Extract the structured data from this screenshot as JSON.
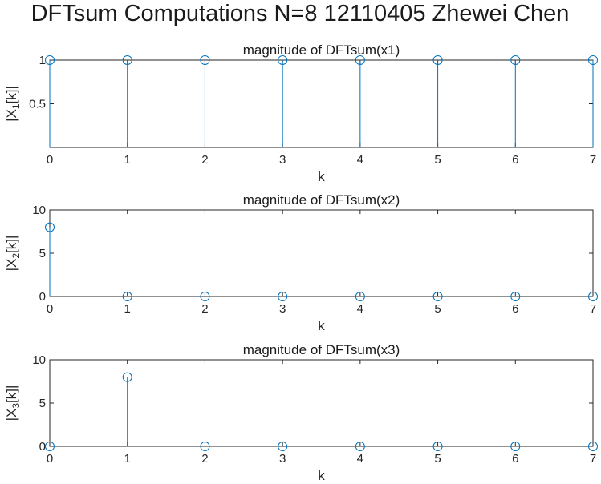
{
  "figure": {
    "suptitle": "DFTsum Computations N=8 12110405 Zhewei Chen"
  },
  "colors": {
    "series": "#0072BD",
    "axes": "#262626"
  },
  "chart_data": [
    {
      "type": "stem",
      "title": "magnitude of DFTsum(x1)",
      "xlabel": "k",
      "ylabel_main": "|X",
      "ylabel_sub": "1",
      "ylabel_tail": "[k]|",
      "xlim": [
        0,
        7
      ],
      "ylim": [
        0,
        1
      ],
      "xticks": [
        0,
        1,
        2,
        3,
        4,
        5,
        6,
        7
      ],
      "yticks": [
        0.5,
        1
      ],
      "ytick_labels": [
        "0.5",
        "1"
      ],
      "x": [
        0,
        1,
        2,
        3,
        4,
        5,
        6,
        7
      ],
      "y": [
        1,
        1,
        1,
        1,
        1,
        1,
        1,
        1
      ]
    },
    {
      "type": "stem",
      "title": "magnitude of DFTsum(x2)",
      "xlabel": "k",
      "ylabel_main": "|X",
      "ylabel_sub": "2",
      "ylabel_tail": "[k]|",
      "xlim": [
        0,
        7
      ],
      "ylim": [
        0,
        10
      ],
      "xticks": [
        0,
        1,
        2,
        3,
        4,
        5,
        6,
        7
      ],
      "yticks": [
        0,
        5,
        10
      ],
      "ytick_labels": [
        "0",
        "5",
        "10"
      ],
      "x": [
        0,
        1,
        2,
        3,
        4,
        5,
        6,
        7
      ],
      "y": [
        8,
        0,
        0,
        0,
        0,
        0,
        0,
        0
      ]
    },
    {
      "type": "stem",
      "title": "magnitude of DFTsum(x3)",
      "xlabel": "k",
      "ylabel_main": "|X",
      "ylabel_sub": "3",
      "ylabel_tail": "[k]|",
      "xlim": [
        0,
        7
      ],
      "ylim": [
        0,
        10
      ],
      "xticks": [
        0,
        1,
        2,
        3,
        4,
        5,
        6,
        7
      ],
      "yticks": [
        0,
        5,
        10
      ],
      "ytick_labels": [
        "0",
        "5",
        "10"
      ],
      "x": [
        0,
        1,
        2,
        3,
        4,
        5,
        6,
        7
      ],
      "y": [
        0,
        8,
        0,
        0,
        0,
        0,
        0,
        0
      ]
    }
  ]
}
